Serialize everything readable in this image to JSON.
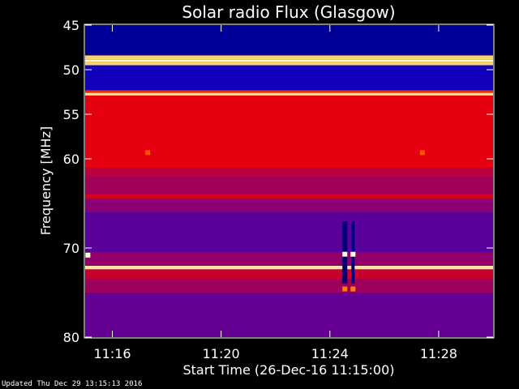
{
  "chart_data": {
    "type": "heatmap",
    "title": "Solar radio Flux (Glasgow)",
    "xlabel": "Start Time (26-Dec-16 11:15:00)",
    "ylabel": "Frequency [MHz]",
    "x_ticks": [
      "11:16",
      "11:20",
      "11:24",
      "11:28"
    ],
    "x_tick_minutes": [
      16,
      20,
      24,
      28
    ],
    "xlim_minutes": [
      15.0,
      30.0
    ],
    "y_ticks": [
      45,
      50,
      55,
      60,
      70,
      80
    ],
    "ylim": [
      45,
      80
    ],
    "colormap": "blue-red-yellow-white",
    "bands": [
      {
        "from": 45.0,
        "to": 48.4,
        "level": 0.1
      },
      {
        "from": 48.4,
        "to": 48.9,
        "level": 0.92
      },
      {
        "from": 48.9,
        "to": 49.1,
        "level": 1.0
      },
      {
        "from": 49.1,
        "to": 49.5,
        "level": 0.92
      },
      {
        "from": 49.5,
        "to": 52.3,
        "level": 0.18
      },
      {
        "from": 52.3,
        "to": 52.6,
        "level": 0.7
      },
      {
        "from": 52.6,
        "to": 52.9,
        "level": 0.95
      },
      {
        "from": 52.9,
        "to": 61.0,
        "level": 0.62
      },
      {
        "from": 61.0,
        "to": 62.0,
        "level": 0.52
      },
      {
        "from": 62.0,
        "to": 64.0,
        "level": 0.46
      },
      {
        "from": 64.0,
        "to": 64.5,
        "level": 0.58
      },
      {
        "from": 64.5,
        "to": 66.0,
        "level": 0.4
      },
      {
        "from": 66.0,
        "to": 70.5,
        "level": 0.3
      },
      {
        "from": 70.5,
        "to": 72.0,
        "level": 0.42
      },
      {
        "from": 72.0,
        "to": 72.4,
        "level": 0.96
      },
      {
        "from": 72.4,
        "to": 73.5,
        "level": 0.55
      },
      {
        "from": 73.5,
        "to": 75.0,
        "level": 0.45
      },
      {
        "from": 75.0,
        "to": 80.0,
        "level": 0.32
      }
    ],
    "interference_columns": [
      {
        "minute": 24.55,
        "width_minutes": 0.18,
        "from": 67.0,
        "to": 74.0,
        "level": 0.06
      },
      {
        "minute": 24.85,
        "width_minutes": 0.12,
        "from": 67.0,
        "to": 74.0,
        "level": 0.08
      }
    ],
    "hot_spots": [
      {
        "minute": 17.3,
        "freq": 59.3,
        "level": 0.75
      },
      {
        "minute": 27.4,
        "freq": 59.3,
        "level": 0.75
      },
      {
        "minute": 24.55,
        "freq": 70.7,
        "level": 1.0
      },
      {
        "minute": 24.85,
        "freq": 70.7,
        "level": 1.0
      },
      {
        "minute": 15.1,
        "freq": 70.8,
        "level": 1.0
      },
      {
        "minute": 24.55,
        "freq": 74.6,
        "level": 0.8
      },
      {
        "minute": 24.85,
        "freq": 74.6,
        "level": 0.8
      }
    ]
  },
  "footer": "Updated Thu Dec 29 13:15:13 2016"
}
